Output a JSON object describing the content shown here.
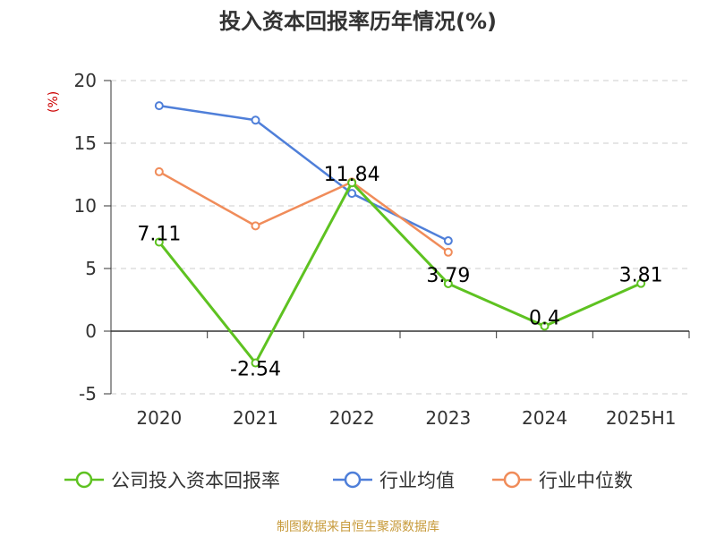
{
  "chart_data": {
    "type": "line",
    "title": "投入资本回报率历年情况(%)",
    "ylabel": "(%)",
    "categories": [
      "2020",
      "2021",
      "2022",
      "2023",
      "2024",
      "2025H1"
    ],
    "ylim": [
      -5,
      20
    ],
    "yticks": [
      -5,
      0,
      5,
      10,
      15,
      20
    ],
    "grid": true,
    "legend_position": "bottom",
    "series": [
      {
        "name": "公司投入资本回报率",
        "color": "#5ec221",
        "values": [
          7.11,
          -2.54,
          11.84,
          3.79,
          0.4,
          3.81
        ],
        "labels": [
          "7.11",
          "-2.54",
          "11.84",
          "3.79",
          "0.4",
          "3.81"
        ]
      },
      {
        "name": "行业均值",
        "color": "#4f7fd9",
        "values": [
          17.99,
          16.84,
          10.99,
          7.21,
          null,
          null
        ]
      },
      {
        "name": "行业中位数",
        "color": "#f08c5a",
        "values": [
          12.72,
          8.4,
          11.9,
          6.3,
          null,
          null
        ]
      }
    ]
  },
  "source": "制图数据来自恒生聚源数据库"
}
